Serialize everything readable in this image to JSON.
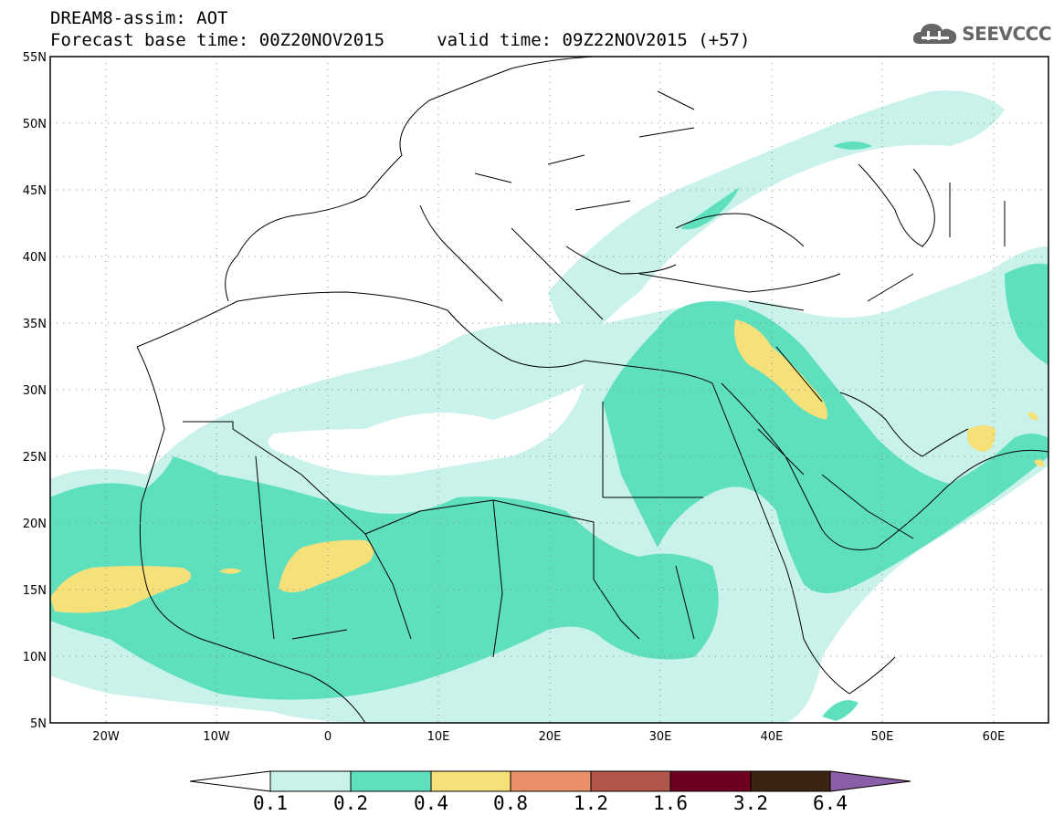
{
  "header": {
    "model_line": "DREAM8-assim: AOT",
    "time_line": "Forecast base time: 00Z20NOV2015     valid time: 09Z22NOV2015 (+57)",
    "logo_text": "SEEVCCC"
  },
  "map": {
    "lat_labels": [
      "55N",
      "50N",
      "45N",
      "40N",
      "35N",
      "30N",
      "25N",
      "20N",
      "15N",
      "10N",
      "5N"
    ],
    "lon_labels": [
      "20W",
      "10W",
      "0",
      "10E",
      "20E",
      "30E",
      "40E",
      "50E",
      "60E"
    ],
    "lon_range": [
      -25,
      65
    ],
    "lat_range": [
      5,
      55
    ],
    "grid": "dotted"
  },
  "colorbar": {
    "labels": [
      "0.1",
      "0.2",
      "0.4",
      "0.8",
      "1.2",
      "1.6",
      "3.2",
      "6.4"
    ],
    "colors": [
      "#ffffff",
      "#c8f2ea",
      "#5ee0be",
      "#f5e07a",
      "#e9906a",
      "#b0574a",
      "#6e0020",
      "#3a2414",
      "#8a5fa8"
    ]
  }
}
